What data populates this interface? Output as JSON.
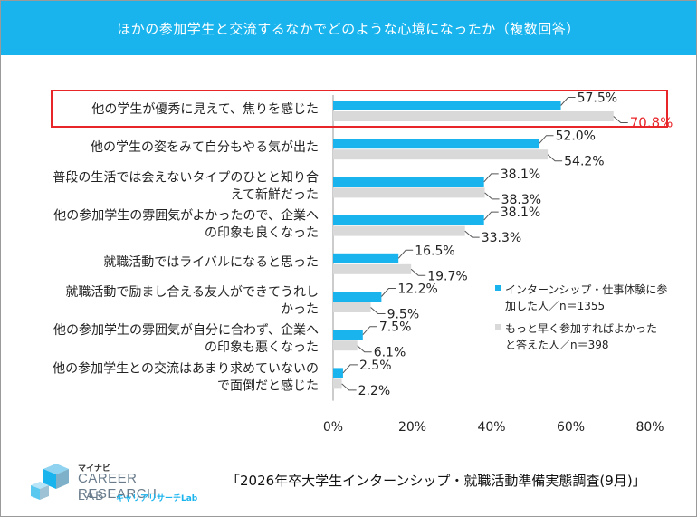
{
  "header": {
    "title": "ほかの参加学生と交流するなかでどのような心境になったか（複数回答）"
  },
  "chart_data": {
    "type": "bar",
    "orientation": "horizontal",
    "title": "ほかの参加学生と交流するなかでどのような心境になったか（複数回答）",
    "categories": [
      [
        "他の学生が優秀に見えて、焦りを感じた"
      ],
      [
        "他の学生の姿をみて自分もやる気が出た"
      ],
      [
        "普段の生活では会えないタイプのひとと知り合",
        "えて新鮮だった"
      ],
      [
        "他の参加学生の雰囲気がよかったので、企業へ",
        "の印象も良くなった"
      ],
      [
        "就職活動ではライバルになると思った"
      ],
      [
        "就職活動で励まし合える友人ができてうれし",
        "かった"
      ],
      [
        "他の参加学生の雰囲気が自分に合わず、企業へ",
        "の印象も悪くなった"
      ],
      [
        "他の参加学生との交流はあまり求めていないの",
        "で面倒だと感じた"
      ]
    ],
    "series": [
      {
        "name": "インターンシップ・仕事体験に参加した人／n＝1355",
        "legend_lines": [
          "インターンシップ・仕事体験に参",
          "加した人／n＝1355"
        ],
        "color": "#19b4ee",
        "values": [
          57.5,
          52.0,
          38.1,
          38.1,
          16.5,
          12.2,
          7.5,
          2.5
        ],
        "labels": [
          "57.5%",
          "52.0%",
          "38.1%",
          "38.1%",
          "16.5%",
          "12.2%",
          "7.5%",
          "2.5%"
        ]
      },
      {
        "name": "もっと早く参加すればよかったと答えた人／n＝398",
        "legend_lines": [
          "もっと早く参加すればよかった",
          "と答えた人／n＝398"
        ],
        "color": "#d9d9d9",
        "values": [
          70.8,
          54.2,
          38.3,
          33.3,
          19.7,
          9.5,
          6.1,
          2.2
        ],
        "labels": [
          "70.8%",
          "54.2%",
          "38.3%",
          "33.3%",
          "19.7%",
          "9.5%",
          "6.1%",
          "2.2%"
        ]
      }
    ],
    "xlim": [
      0,
      80
    ],
    "xticks": [
      0,
      20,
      40,
      60,
      80
    ],
    "xtick_labels": [
      "0%",
      "20%",
      "40%",
      "60%",
      "80%"
    ],
    "highlight": {
      "category_index": 0,
      "color": "#e8262a"
    },
    "legend_position": "right"
  },
  "footer": {
    "source": "「2026年卒大学生インターンシップ・就職活動準備実態調査(9月)」",
    "logo_small": "マイナビ",
    "logo_big": "CAREER RESEARCH",
    "logo_lab": "LAB",
    "logo_kana": "キャリアリサーチLab"
  }
}
